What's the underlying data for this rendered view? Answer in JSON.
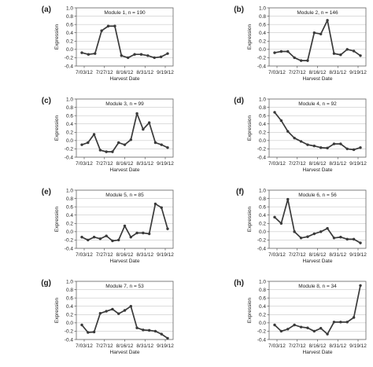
{
  "chart_data": [
    {
      "type": "line",
      "panel_label": "(a)",
      "title": "Module 1, n = 190",
      "xlabel": "Harvest Date",
      "ylabel": "Expression",
      "x_tick_labels": [
        "7/03/12",
        "7/27/12",
        "8/16/12",
        "8/31/12",
        "9/19/12"
      ],
      "ylim": [
        -0.4,
        1.0
      ],
      "yticks": [
        -0.4,
        -0.2,
        0.0,
        0.2,
        0.4,
        0.6,
        0.8,
        1.0
      ],
      "grid": true,
      "series": [
        {
          "values": [
            -0.08,
            -0.12,
            -0.1,
            0.45,
            0.56,
            0.56,
            -0.15,
            -0.2,
            -0.12,
            -0.12,
            -0.15,
            -0.2,
            -0.18,
            -0.1
          ]
        }
      ]
    },
    {
      "type": "line",
      "panel_label": "(b)",
      "title": "Module 2, n = 146",
      "xlabel": "Harvest Date",
      "ylabel": "Expression",
      "x_tick_labels": [
        "7/03/12",
        "7/27/12",
        "8/16/12",
        "8/31/12",
        "9/19/12"
      ],
      "ylim": [
        -0.4,
        1.0
      ],
      "yticks": [
        -0.4,
        -0.2,
        0.0,
        0.2,
        0.4,
        0.6,
        0.8,
        1.0
      ],
      "grid": true,
      "series": [
        {
          "values": [
            -0.08,
            -0.05,
            -0.05,
            -0.2,
            -0.27,
            -0.27,
            0.4,
            0.37,
            0.7,
            -0.1,
            -0.13,
            0.0,
            -0.04,
            -0.15
          ]
        }
      ]
    },
    {
      "type": "line",
      "panel_label": "(c)",
      "title": "Module 3, n = 99",
      "xlabel": "Harvest Date",
      "ylabel": "Expression",
      "x_tick_labels": [
        "7/03/12",
        "7/27/12",
        "8/16/12",
        "8/31/12",
        "9/19/12"
      ],
      "ylim": [
        -0.4,
        1.0
      ],
      "yticks": [
        -0.4,
        -0.2,
        0.0,
        0.2,
        0.4,
        0.6,
        0.8,
        1.0
      ],
      "grid": true,
      "series": [
        {
          "values": [
            -0.1,
            -0.05,
            0.15,
            -0.23,
            -0.27,
            -0.27,
            -0.05,
            -0.1,
            0.02,
            0.65,
            0.27,
            0.43,
            -0.05,
            -0.1,
            -0.17
          ]
        }
      ]
    },
    {
      "type": "line",
      "panel_label": "(d)",
      "title": "Module 4, n = 92",
      "xlabel": "Harvest Date",
      "ylabel": "Expression",
      "x_tick_labels": [
        "7/03/12",
        "7/27/12",
        "8/16/12",
        "8/31/12",
        "9/19/12"
      ],
      "ylim": [
        -0.4,
        1.0
      ],
      "yticks": [
        -0.4,
        -0.2,
        0.0,
        0.2,
        0.4,
        0.6,
        0.8,
        1.0
      ],
      "grid": true,
      "series": [
        {
          "values": [
            0.68,
            0.48,
            0.22,
            0.06,
            -0.02,
            -0.1,
            -0.13,
            -0.17,
            -0.18,
            -0.08,
            -0.08,
            -0.2,
            -0.22,
            -0.17
          ]
        }
      ]
    },
    {
      "type": "line",
      "panel_label": "(e)",
      "title": "Module 5, n = 85",
      "xlabel": "Harvest Date",
      "ylabel": "Expression",
      "x_tick_labels": [
        "7/03/12",
        "7/27/12",
        "8/16/12",
        "8/31/12",
        "9/19/12"
      ],
      "ylim": [
        -0.4,
        1.0
      ],
      "yticks": [
        -0.4,
        -0.2,
        0.0,
        0.2,
        0.4,
        0.6,
        0.8,
        1.0
      ],
      "grid": true,
      "series": [
        {
          "values": [
            -0.13,
            -0.2,
            -0.13,
            -0.17,
            -0.1,
            -0.22,
            -0.2,
            0.14,
            -0.13,
            -0.03,
            -0.03,
            -0.05,
            0.67,
            0.58,
            0.07
          ]
        }
      ]
    },
    {
      "type": "line",
      "panel_label": "(f)",
      "title": "Module 6, n = 56",
      "xlabel": "Harvest Date",
      "ylabel": "Expression",
      "x_tick_labels": [
        "7/03/12",
        "7/27/12",
        "8/16/12",
        "8/31/12",
        "9/19/12"
      ],
      "ylim": [
        -0.4,
        1.0
      ],
      "yticks": [
        -0.4,
        -0.2,
        0.0,
        0.2,
        0.4,
        0.6,
        0.8,
        1.0
      ],
      "grid": true,
      "series": [
        {
          "values": [
            0.35,
            0.2,
            0.78,
            0.0,
            -0.15,
            -0.12,
            -0.05,
            0.0,
            0.08,
            -0.15,
            -0.13,
            -0.18,
            -0.18,
            -0.27
          ]
        }
      ]
    },
    {
      "type": "line",
      "panel_label": "(g)",
      "title": "Module 7, n = 53",
      "xlabel": "Harvest Date",
      "ylabel": "Expression",
      "x_tick_labels": [
        "7/03/12",
        "7/27/12",
        "8/16/12",
        "8/31/12",
        "9/19/12"
      ],
      "ylim": [
        -0.4,
        1.0
      ],
      "yticks": [
        -0.4,
        -0.2,
        0.0,
        0.2,
        0.4,
        0.6,
        0.8,
        1.0
      ],
      "grid": true,
      "series": [
        {
          "values": [
            -0.05,
            -0.23,
            -0.22,
            0.23,
            0.28,
            0.33,
            0.22,
            0.3,
            0.4,
            -0.12,
            -0.17,
            -0.18,
            -0.2,
            -0.27,
            -0.37
          ]
        }
      ]
    },
    {
      "type": "line",
      "panel_label": "(h)",
      "title": "Module 8, n = 34",
      "xlabel": "Harvest Date",
      "ylabel": "Expression",
      "x_tick_labels": [
        "7/03/12",
        "7/27/12",
        "8/16/12",
        "8/31/12",
        "9/19/12"
      ],
      "ylim": [
        -0.4,
        1.0
      ],
      "yticks": [
        -0.4,
        -0.2,
        0.0,
        0.2,
        0.4,
        0.6,
        0.8,
        1.0
      ],
      "grid": true,
      "series": [
        {
          "values": [
            -0.05,
            -0.2,
            -0.15,
            -0.05,
            -0.1,
            -0.12,
            -0.2,
            -0.13,
            -0.27,
            0.02,
            0.02,
            0.02,
            0.13,
            0.9
          ]
        }
      ]
    }
  ]
}
